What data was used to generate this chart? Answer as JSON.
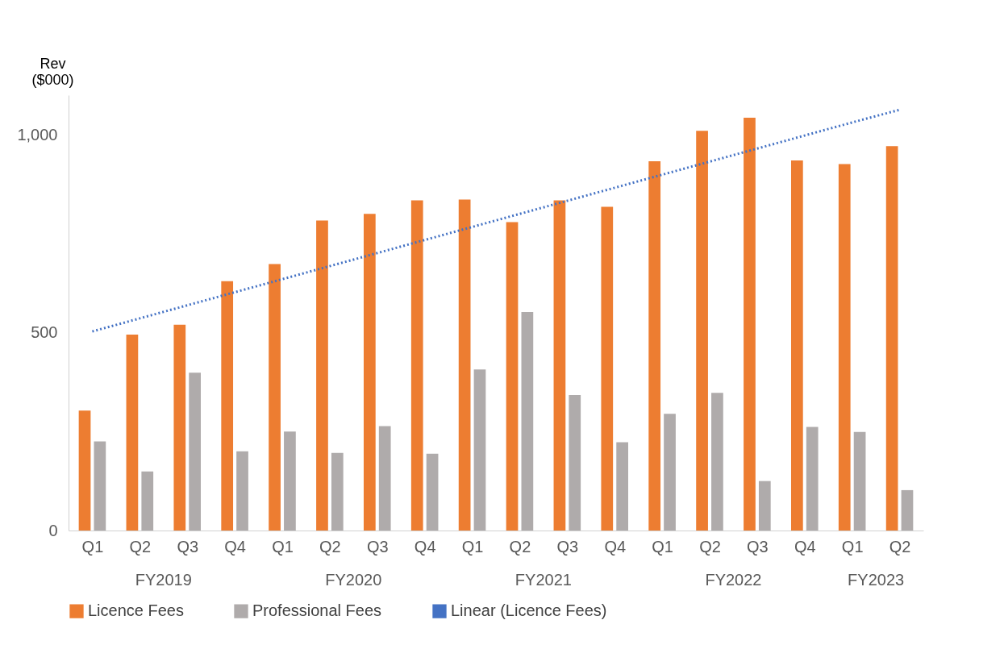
{
  "chart_data": {
    "type": "bar",
    "ylabel": "Rev ($000)",
    "categories": [
      "Q1",
      "Q2",
      "Q3",
      "Q4",
      "Q1",
      "Q2",
      "Q3",
      "Q4",
      "Q1",
      "Q2",
      "Q3",
      "Q4",
      "Q1",
      "Q2",
      "Q3",
      "Q4",
      "Q1",
      "Q2"
    ],
    "annotations": [
      "FY2019",
      "FY2020",
      "FY2021",
      "FY2022",
      "FY2023"
    ],
    "series": [
      {
        "name": "Licence Fees",
        "color": "#ed7d31",
        "values": [
          303,
          495,
          520,
          630,
          673,
          783,
          800,
          834,
          836,
          779,
          834,
          818,
          933,
          1010,
          1043,
          935,
          926,
          971
        ]
      },
      {
        "name": "Professional Fees",
        "color": "#afabab",
        "values": [
          225,
          149,
          399,
          200,
          250,
          196,
          264,
          194,
          407,
          552,
          342,
          223,
          295,
          348,
          125,
          262,
          249,
          102
        ]
      },
      {
        "name": "Linear (Licence Fees)",
        "type": "line",
        "line_style": "dotted",
        "color": "#4472c4",
        "values": [
          503,
          536,
          569,
          602,
          635,
          668,
          701,
          734,
          767,
          800,
          833,
          866,
          899,
          932,
          965,
          998,
          1031,
          1063
        ]
      }
    ],
    "ylim": [
      0,
      1100
    ],
    "yticks": [
      0,
      500,
      {
        "value": 1000,
        "label": "1,000"
      }
    ],
    "grid": false,
    "legend": "bottom"
  }
}
